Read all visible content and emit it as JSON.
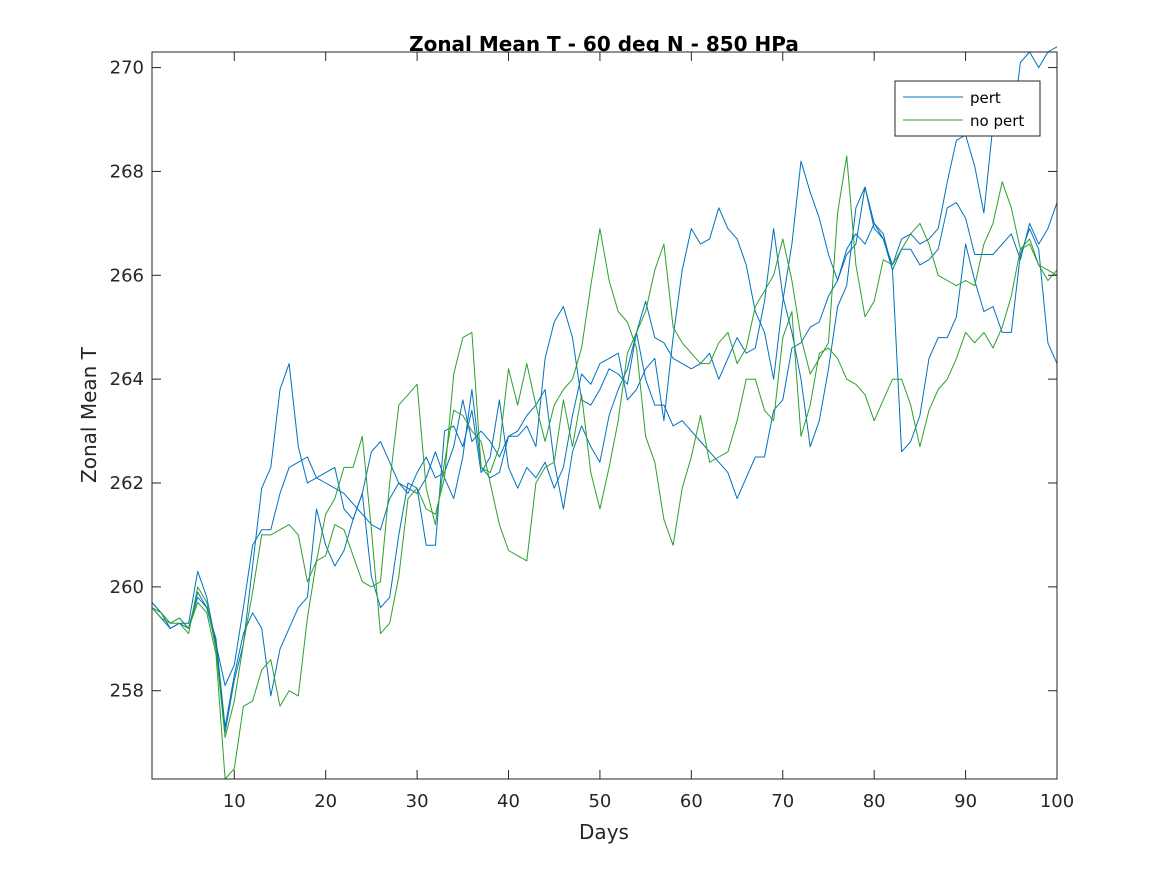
{
  "chart_data": {
    "type": "line",
    "title": "Zonal Mean T - 60 deg N - 850 HPa",
    "xlabel": "Days",
    "ylabel": "Zonal Mean T",
    "xlim": [
      1,
      100
    ],
    "ylim": [
      256.3,
      270.3
    ],
    "xticks": [
      10,
      20,
      30,
      40,
      50,
      60,
      70,
      80,
      90,
      100
    ],
    "yticks": [
      258,
      260,
      262,
      264,
      266,
      268,
      270
    ],
    "grid": false,
    "legend": {
      "placement": "top-right",
      "entries": [
        "pert",
        "no pert"
      ]
    },
    "series": [
      {
        "name": "pert",
        "color": "#0072BD",
        "x": [
          1,
          2,
          3,
          4,
          5,
          6,
          7,
          8,
          9,
          10,
          11,
          12,
          13,
          14,
          15,
          16,
          17,
          18,
          19,
          20,
          21,
          22,
          23,
          24,
          25,
          26,
          27,
          28,
          29,
          30,
          31,
          32,
          33,
          34,
          35,
          36,
          37,
          38,
          39,
          40,
          41,
          42,
          43,
          44,
          45,
          46,
          47,
          48,
          49,
          50,
          51,
          52,
          53,
          54,
          55,
          56,
          57,
          58,
          59,
          60,
          61,
          62,
          63,
          64,
          65,
          66,
          67,
          68,
          69,
          70,
          71,
          72,
          73,
          74,
          75,
          76,
          77,
          78,
          79,
          80,
          81,
          82,
          83,
          84,
          85,
          86,
          87,
          88,
          89,
          90,
          91,
          92,
          93,
          94,
          95,
          96,
          97,
          98,
          99,
          100
        ],
        "y": [
          259.7,
          259.5,
          259.2,
          259.3,
          259.3,
          260.3,
          259.8,
          258.9,
          258.1,
          258.5,
          259.6,
          260.8,
          261.1,
          261.1,
          261.8,
          262.3,
          262.4,
          262.5,
          262.1,
          262.0,
          261.9,
          261.8,
          261.6,
          261.4,
          261.2,
          261.1,
          261.7,
          262.0,
          261.9,
          261.8,
          262.1,
          262.6,
          262.1,
          261.7,
          262.5,
          263.8,
          262.3,
          262.1,
          262.2,
          262.9,
          263.0,
          263.3,
          263.5,
          263.8,
          262.4,
          261.5,
          262.6,
          263.1,
          262.7,
          262.4,
          263.3,
          263.8,
          264.2,
          264.9,
          264.0,
          263.5,
          263.5,
          263.1,
          263.2,
          263.0,
          262.8,
          262.6,
          262.4,
          262.2,
          261.7,
          262.1,
          262.5,
          262.5,
          263.4,
          263.6,
          264.6,
          264.7,
          265.0,
          265.1,
          265.6,
          265.9,
          266.4,
          266.6,
          267.7,
          267.0,
          266.8,
          266.1,
          266.5,
          266.5,
          266.2,
          266.3,
          266.5,
          267.3,
          267.4,
          267.1,
          266.4,
          266.4,
          266.4,
          266.6,
          266.8,
          266.3,
          267.0,
          266.6,
          266.9,
          267.4
        ]
      },
      {
        "name": "",
        "color": "#0072BD",
        "x": [
          1,
          2,
          3,
          4,
          5,
          6,
          7,
          8,
          9,
          10,
          11,
          12,
          13,
          14,
          15,
          16,
          17,
          18,
          19,
          20,
          21,
          22,
          23,
          24,
          25,
          26,
          27,
          28,
          29,
          30,
          31,
          32,
          33,
          34,
          35,
          36,
          37,
          38,
          39,
          40,
          41,
          42,
          43,
          44,
          45,
          46,
          47,
          48,
          49,
          50,
          51,
          52,
          53,
          54,
          55,
          56,
          57,
          58,
          59,
          60,
          61,
          62,
          63,
          64,
          65,
          66,
          67,
          68,
          69,
          70,
          71,
          72,
          73,
          74,
          75,
          76,
          77,
          78,
          79,
          80,
          81,
          82,
          83,
          84,
          85,
          86,
          87,
          88,
          89,
          90,
          91,
          92,
          93,
          94,
          95,
          96,
          97,
          98,
          99,
          100
        ],
        "y": [
          259.7,
          259.5,
          259.3,
          259.4,
          259.2,
          259.9,
          259.6,
          259.0,
          257.3,
          258.3,
          259.1,
          259.5,
          259.2,
          257.9,
          258.8,
          259.2,
          259.6,
          259.8,
          261.5,
          260.8,
          260.4,
          260.7,
          261.3,
          261.8,
          260.2,
          259.6,
          259.8,
          261.0,
          262.0,
          261.9,
          260.8,
          260.8,
          263.0,
          263.1,
          262.7,
          263.4,
          262.2,
          262.5,
          263.6,
          262.3,
          261.9,
          262.3,
          262.1,
          262.4,
          261.9,
          262.3,
          263.3,
          264.1,
          263.9,
          264.3,
          264.4,
          264.5,
          263.6,
          263.8,
          264.2,
          264.4,
          263.2,
          264.8,
          266.1,
          266.9,
          266.6,
          266.7,
          267.3,
          266.9,
          266.7,
          266.2,
          265.3,
          264.9,
          264.0,
          265.5,
          266.6,
          268.2,
          267.6,
          267.1,
          266.4,
          265.9,
          266.5,
          266.8,
          266.6,
          267.0,
          266.7,
          266.2,
          266.7,
          266.8,
          266.6,
          266.7,
          266.9,
          267.8,
          268.6,
          268.7,
          268.1,
          267.2,
          268.9,
          269.3,
          268.7,
          270.1,
          270.3,
          270.0,
          270.3,
          270.4
        ]
      },
      {
        "name": "",
        "color": "#0072BD",
        "x": [
          1,
          2,
          3,
          4,
          5,
          6,
          7,
          8,
          9,
          10,
          11,
          12,
          13,
          14,
          15,
          16,
          17,
          18,
          19,
          20,
          21,
          22,
          23,
          24,
          25,
          26,
          27,
          28,
          29,
          30,
          31,
          32,
          33,
          34,
          35,
          36,
          37,
          38,
          39,
          40,
          41,
          42,
          43,
          44,
          45,
          46,
          47,
          48,
          49,
          50,
          51,
          52,
          53,
          54,
          55,
          56,
          57,
          58,
          59,
          60,
          61,
          62,
          63,
          64,
          65,
          66,
          67,
          68,
          69,
          70,
          71,
          72,
          73,
          74,
          75,
          76,
          77,
          78,
          79,
          80,
          81,
          82,
          83,
          84,
          85,
          86,
          87,
          88,
          89,
          90,
          91,
          92,
          93,
          94,
          95,
          96,
          97,
          98,
          99,
          100
        ],
        "y": [
          259.6,
          259.4,
          259.2,
          259.3,
          259.2,
          259.8,
          259.6,
          258.9,
          257.2,
          258.2,
          258.9,
          260.4,
          261.9,
          262.3,
          263.8,
          264.3,
          262.7,
          262.0,
          262.1,
          262.2,
          262.3,
          261.5,
          261.3,
          261.8,
          262.6,
          262.8,
          262.4,
          262.0,
          261.8,
          262.2,
          262.5,
          262.1,
          262.2,
          262.7,
          263.6,
          262.8,
          263.0,
          262.8,
          262.5,
          262.9,
          262.9,
          263.1,
          262.7,
          264.4,
          265.1,
          265.4,
          264.8,
          263.6,
          263.5,
          263.8,
          264.2,
          264.1,
          263.9,
          264.9,
          265.5,
          264.8,
          264.7,
          264.4,
          264.3,
          264.2,
          264.3,
          264.5,
          264.0,
          264.4,
          264.8,
          264.5,
          264.6,
          265.5,
          266.9,
          265.6,
          264.9,
          264.0,
          262.7,
          263.2,
          264.2,
          265.4,
          265.8,
          267.3,
          267.7,
          266.9,
          266.7,
          266.1,
          262.6,
          262.8,
          263.3,
          264.4,
          264.8,
          264.8,
          265.2,
          266.6,
          265.9,
          265.3,
          265.4,
          264.9,
          264.9,
          266.4,
          266.9,
          266.5,
          264.7,
          264.3
        ]
      },
      {
        "name": "no pert",
        "color": "#2CA02C",
        "x": [
          1,
          2,
          3,
          4,
          5,
          6,
          7,
          8,
          9,
          10,
          11,
          12,
          13,
          14,
          15,
          16,
          17,
          18,
          19,
          20,
          21,
          22,
          23,
          24,
          25,
          26,
          27,
          28,
          29,
          30,
          31,
          32,
          33,
          34,
          35,
          36,
          37,
          38,
          39,
          40,
          41,
          42,
          43,
          44,
          45,
          46,
          47,
          48,
          49,
          50,
          51,
          52,
          53,
          54,
          55,
          56,
          57,
          58,
          59,
          60,
          61,
          62,
          63,
          64,
          65,
          66,
          67,
          68,
          69,
          70,
          71,
          72,
          73,
          74,
          75,
          76,
          77,
          78,
          79,
          80,
          81,
          82,
          83,
          84,
          85,
          86,
          87,
          88,
          89,
          90,
          91,
          92,
          93,
          94,
          95,
          96,
          97,
          98,
          99,
          100
        ],
        "y": [
          259.6,
          259.5,
          259.3,
          259.3,
          259.1,
          260.0,
          259.7,
          258.8,
          257.1,
          257.8,
          258.9,
          259.9,
          261.0,
          261.0,
          261.1,
          261.2,
          261.0,
          260.1,
          260.5,
          261.4,
          261.7,
          262.3,
          262.3,
          262.9,
          261.1,
          259.1,
          259.3,
          260.2,
          261.7,
          261.9,
          261.5,
          261.4,
          262.1,
          264.1,
          264.8,
          264.9,
          262.3,
          262.2,
          262.7,
          264.2,
          263.5,
          264.3,
          263.5,
          262.8,
          263.5,
          263.8,
          264.0,
          264.6,
          265.8,
          266.9,
          265.9,
          265.3,
          265.1,
          264.6,
          262.9,
          262.4,
          261.3,
          260.8,
          261.9,
          262.5,
          263.3,
          262.4,
          262.5,
          262.6,
          263.2,
          264.0,
          264.0,
          263.4,
          263.2,
          264.8,
          265.3,
          262.9,
          263.5,
          264.5,
          264.6,
          264.4,
          264.0,
          263.9,
          263.7,
          263.2,
          263.6,
          264.0,
          264.0,
          263.5,
          262.7,
          263.4,
          263.8,
          264.0,
          264.4,
          264.9,
          264.7,
          264.9,
          264.6,
          265.0,
          265.6,
          266.5,
          266.7,
          266.2,
          265.9,
          266.1
        ]
      },
      {
        "name": "",
        "color": "#2CA02C",
        "x": [
          1,
          2,
          3,
          4,
          5,
          6,
          7,
          8,
          9,
          10,
          11,
          12,
          13,
          14,
          15,
          16,
          17,
          18,
          19,
          20,
          21,
          22,
          23,
          24,
          25,
          26,
          27,
          28,
          29,
          30,
          31,
          32,
          33,
          34,
          35,
          36,
          37,
          38,
          39,
          40,
          41,
          42,
          43,
          44,
          45,
          46,
          47,
          48,
          49,
          50,
          51,
          52,
          53,
          54,
          55,
          56,
          57,
          58,
          59,
          60,
          61,
          62,
          63,
          64,
          65,
          66,
          67,
          68,
          69,
          70,
          71,
          72,
          73,
          74,
          75,
          76,
          77,
          78,
          79,
          80,
          81,
          82,
          83,
          84,
          85,
          86,
          87,
          88,
          89,
          90,
          91,
          92,
          93,
          94,
          95,
          96,
          97,
          98,
          99,
          100
        ],
        "y": [
          259.6,
          259.4,
          259.3,
          259.4,
          259.2,
          259.7,
          259.5,
          258.7,
          256.3,
          256.5,
          257.7,
          257.8,
          258.4,
          258.6,
          257.7,
          258.0,
          257.9,
          259.4,
          260.5,
          260.6,
          261.2,
          261.1,
          260.6,
          260.1,
          260.0,
          260.1,
          262.0,
          263.5,
          263.7,
          263.9,
          261.9,
          261.2,
          262.4,
          263.4,
          263.3,
          263.0,
          262.8,
          262.0,
          261.2,
          260.7,
          260.6,
          260.5,
          262.0,
          262.3,
          262.4,
          263.6,
          262.7,
          263.7,
          262.2,
          261.5,
          262.3,
          263.2,
          264.5,
          264.9,
          265.3,
          266.1,
          266.6,
          265.0,
          264.7,
          264.5,
          264.3,
          264.3,
          264.7,
          264.9,
          264.3,
          264.6,
          265.4,
          265.7,
          266.0,
          266.7,
          265.9,
          264.8,
          264.1,
          264.4,
          264.7,
          267.2,
          268.3,
          266.2,
          265.2,
          265.5,
          266.3,
          266.2,
          266.5,
          266.8,
          267.0,
          266.6,
          266.0,
          265.9,
          265.8,
          265.9,
          265.8,
          266.6,
          267.0,
          267.8,
          267.3,
          266.5,
          266.6,
          266.2,
          266.1,
          266.0
        ]
      }
    ]
  }
}
